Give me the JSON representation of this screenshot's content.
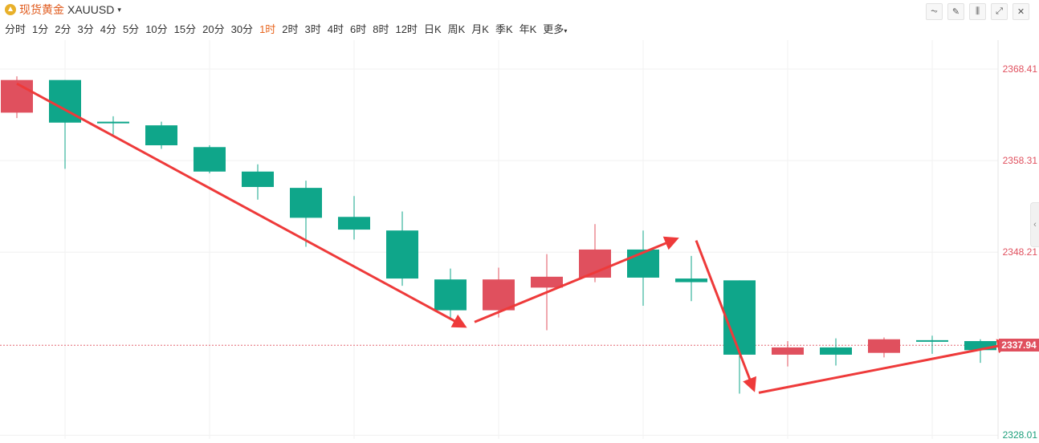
{
  "header": {
    "symbol_name": "现货黄金",
    "symbol_code": "XAUUSD",
    "dropdown_caret": "▾"
  },
  "toolbar": {
    "tools": [
      {
        "name": "line-chart-icon",
        "glyph": "⏦"
      },
      {
        "name": "draw-pencil-icon",
        "glyph": "✎"
      },
      {
        "name": "candlestick-icon",
        "glyph": "⫼"
      },
      {
        "name": "expand-icon",
        "glyph": "⤢"
      },
      {
        "name": "close-icon",
        "glyph": "✕"
      }
    ]
  },
  "periods": {
    "items": [
      "分时",
      "1分",
      "2分",
      "3分",
      "4分",
      "5分",
      "10分",
      "15分",
      "20分",
      "30分",
      "1时",
      "2时",
      "3时",
      "4时",
      "6时",
      "8时",
      "12时",
      "日K",
      "周K",
      "月K",
      "季K",
      "年K",
      "更多"
    ],
    "active": "1时",
    "more_caret": "▾"
  },
  "axis": {
    "labels": [
      {
        "value": "2368.41",
        "color": "#e0505e"
      },
      {
        "value": "2358.31",
        "color": "#e0505e"
      },
      {
        "value": "2348.21",
        "color": "#e0505e"
      },
      {
        "value": "2328.01",
        "color": "#1a9e7a"
      }
    ],
    "current_price": "2337.94",
    "side_handle": "‹"
  },
  "colors": {
    "up": "#e0505e",
    "down": "#0fa68a",
    "arrow": "#ee3a3a",
    "accent": "#e8661f"
  },
  "chart_data": {
    "type": "candlestick",
    "ylim": [
      2327.6,
      2371.6
    ],
    "current_price": 2337.94,
    "candles": [
      {
        "o": 2363.6,
        "c": 2367.2,
        "h": 2367.6,
        "l": 2363.0
      },
      {
        "o": 2367.2,
        "c": 2362.5,
        "h": 2367.2,
        "l": 2357.4
      },
      {
        "o": 2362.6,
        "c": 2362.5,
        "h": 2363.2,
        "l": 2361.2
      },
      {
        "o": 2362.2,
        "c": 2360.0,
        "h": 2362.6,
        "l": 2359.6
      },
      {
        "o": 2359.8,
        "c": 2357.1,
        "h": 2360.0,
        "l": 2356.9
      },
      {
        "o": 2357.1,
        "c": 2355.4,
        "h": 2357.9,
        "l": 2354.0
      },
      {
        "o": 2355.3,
        "c": 2352.0,
        "h": 2356.1,
        "l": 2348.8
      },
      {
        "o": 2352.1,
        "c": 2350.7,
        "h": 2354.4,
        "l": 2349.6
      },
      {
        "o": 2350.6,
        "c": 2345.3,
        "h": 2352.7,
        "l": 2344.5
      },
      {
        "o": 2345.2,
        "c": 2341.8,
        "h": 2346.4,
        "l": 2340.9
      },
      {
        "o": 2341.8,
        "c": 2345.2,
        "h": 2346.5,
        "l": 2341.0
      },
      {
        "o": 2344.3,
        "c": 2345.5,
        "h": 2348.0,
        "l": 2339.6
      },
      {
        "o": 2345.4,
        "c": 2348.5,
        "h": 2351.3,
        "l": 2344.9
      },
      {
        "o": 2348.5,
        "c": 2345.4,
        "h": 2350.6,
        "l": 2342.3
      },
      {
        "o": 2345.3,
        "c": 2344.9,
        "h": 2347.8,
        "l": 2342.8
      },
      {
        "o": 2345.1,
        "c": 2336.9,
        "h": 2345.1,
        "l": 2332.6
      },
      {
        "o": 2336.9,
        "c": 2337.7,
        "h": 2338.4,
        "l": 2335.6
      },
      {
        "o": 2337.7,
        "c": 2336.9,
        "h": 2338.7,
        "l": 2335.7
      },
      {
        "o": 2337.1,
        "c": 2338.6,
        "h": 2338.8,
        "l": 2336.6
      },
      {
        "o": 2338.5,
        "c": 2338.4,
        "h": 2339.0,
        "l": 2337.0
      },
      {
        "o": 2338.4,
        "c": 2337.4,
        "h": 2338.6,
        "l": 2336.0
      }
    ],
    "annotations": [
      {
        "type": "arrow",
        "from": {
          "i": 0,
          "y": 2366.8
        },
        "to": {
          "i": 9.3,
          "y": 2340.0
        }
      },
      {
        "type": "arrow",
        "from": {
          "i": 9.5,
          "y": 2340.5
        },
        "to": {
          "i": 13.7,
          "y": 2349.7
        }
      },
      {
        "type": "arrow",
        "from": {
          "i": 14.1,
          "y": 2349.5
        },
        "to": {
          "i": 15.3,
          "y": 2333.0
        }
      },
      {
        "type": "arrow",
        "from": {
          "i": 15.4,
          "y": 2332.7
        },
        "to": {
          "i": 20.6,
          "y": 2338.1
        }
      }
    ]
  }
}
